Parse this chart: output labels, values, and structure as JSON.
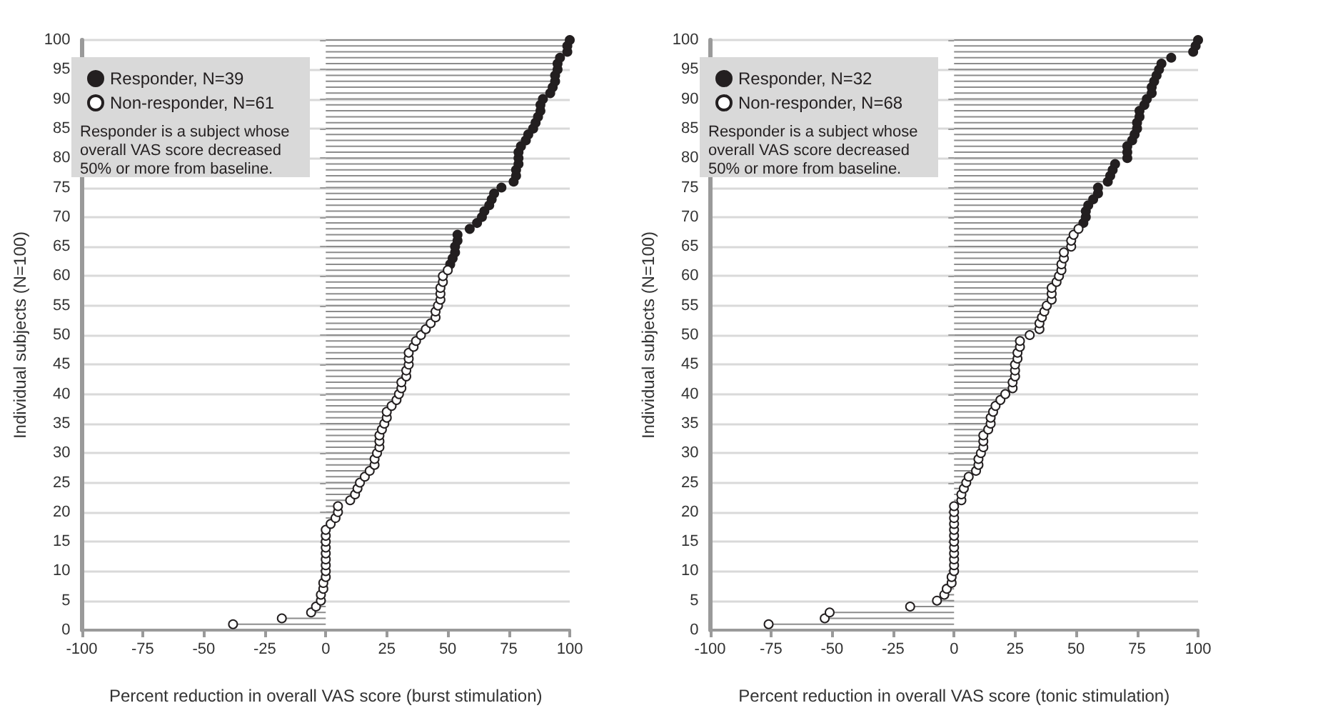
{
  "chart_data": [
    {
      "type": "lollipop",
      "orientation": "horizontal",
      "xlabel": "Percent reduction in overall VAS score (burst stimulation)",
      "ylabel": "Individual subjects (N=100)",
      "xlim": [
        -100,
        100
      ],
      "xticks": [
        -100,
        -75,
        -50,
        -25,
        0,
        25,
        50,
        75,
        100
      ],
      "ylim": [
        0,
        100
      ],
      "yticks": [
        0,
        5,
        10,
        15,
        20,
        25,
        30,
        35,
        40,
        45,
        50,
        55,
        60,
        65,
        70,
        75,
        80,
        85,
        90,
        95,
        100
      ],
      "grid": "y",
      "legend": "top left",
      "marker": "circle",
      "annotations": [
        "Responder is a subject whose overall VAS score decreased 50% or more from baseline."
      ],
      "series": [
        {
          "name": "Responder, N=39",
          "color": "#231f20",
          "x": [
            62,
            63,
            64,
            65,
            66,
            67,
            68,
            69,
            70,
            71,
            72,
            73,
            74,
            75,
            76,
            77,
            78,
            79,
            80,
            81,
            82,
            83,
            84,
            85,
            86,
            87,
            88,
            89,
            90,
            91,
            92,
            93,
            94,
            95,
            96,
            97,
            98,
            99,
            100
          ],
          "values": [
            51,
            52,
            53,
            53,
            54,
            54,
            59,
            62,
            64,
            65,
            67,
            68,
            69,
            72,
            77,
            78,
            78,
            79,
            79,
            79,
            80,
            82,
            83,
            85,
            86,
            87,
            88,
            88,
            89,
            92,
            93,
            94,
            94,
            95,
            95,
            96,
            99,
            99,
            100
          ]
        },
        {
          "name": "Non-responder, N=61",
          "color": "#ffffff",
          "x": [
            1,
            2,
            3,
            4,
            5,
            6,
            7,
            8,
            9,
            10,
            11,
            12,
            13,
            14,
            15,
            16,
            17,
            18,
            19,
            20,
            21,
            22,
            23,
            24,
            25,
            26,
            27,
            28,
            29,
            30,
            31,
            32,
            33,
            34,
            35,
            36,
            37,
            38,
            39,
            40,
            41,
            42,
            43,
            44,
            45,
            46,
            47,
            48,
            49,
            50,
            51,
            52,
            53,
            54,
            55,
            56,
            57,
            58,
            59,
            60,
            61
          ],
          "values": [
            -38,
            -18,
            -6,
            -4,
            -2,
            -2,
            -1,
            -1,
            0,
            0,
            0,
            0,
            0,
            0,
            0,
            0,
            0,
            2,
            4,
            5,
            5,
            10,
            12,
            13,
            14,
            16,
            18,
            20,
            20,
            21,
            22,
            22,
            22,
            23,
            24,
            25,
            25,
            27,
            29,
            30,
            31,
            31,
            33,
            33,
            34,
            34,
            34,
            36,
            37,
            39,
            41,
            43,
            45,
            45,
            46,
            47,
            47,
            47,
            48,
            48,
            50
          ]
        }
      ]
    },
    {
      "type": "lollipop",
      "orientation": "horizontal",
      "xlabel": "Percent reduction in overall VAS score (tonic stimulation)",
      "ylabel": "Individual subjects (N=100)",
      "xlim": [
        -100,
        100
      ],
      "xticks": [
        -100,
        -75,
        -50,
        -25,
        0,
        25,
        50,
        75,
        100
      ],
      "ylim": [
        0,
        100
      ],
      "yticks": [
        0,
        5,
        10,
        15,
        20,
        25,
        30,
        35,
        40,
        45,
        50,
        55,
        60,
        65,
        70,
        75,
        80,
        85,
        90,
        95,
        100
      ],
      "grid": "y",
      "legend": "top left",
      "marker": "circle",
      "annotations": [
        "Responder is a subject whose overall VAS score decreased 50% or more from baseline."
      ],
      "series": [
        {
          "name": "Responder, N=32",
          "color": "#231f20",
          "x": [
            69,
            70,
            71,
            72,
            73,
            74,
            75,
            76,
            77,
            78,
            79,
            80,
            81,
            82,
            83,
            84,
            85,
            86,
            87,
            88,
            89,
            90,
            91,
            92,
            93,
            94,
            95,
            96,
            97,
            98,
            99,
            100
          ],
          "values": [
            53,
            54,
            54,
            55,
            57,
            59,
            59,
            63,
            64,
            65,
            66,
            71,
            71,
            71,
            73,
            74,
            75,
            75,
            76,
            76,
            78,
            79,
            81,
            81,
            82,
            83,
            84,
            85,
            89,
            98,
            99,
            100
          ]
        },
        {
          "name": "Non-responder, N=68",
          "color": "#ffffff",
          "x": [
            1,
            2,
            3,
            4,
            5,
            6,
            7,
            8,
            9,
            10,
            11,
            12,
            13,
            14,
            15,
            16,
            17,
            18,
            19,
            20,
            21,
            22,
            23,
            24,
            25,
            26,
            27,
            28,
            29,
            30,
            31,
            32,
            33,
            34,
            35,
            36,
            37,
            38,
            39,
            40,
            41,
            42,
            43,
            44,
            45,
            46,
            47,
            48,
            49,
            50,
            51,
            52,
            53,
            54,
            55,
            56,
            57,
            58,
            59,
            60,
            61,
            62,
            63,
            64,
            65,
            66,
            67,
            68
          ],
          "values": [
            -76,
            -53,
            -51,
            -18,
            -7,
            -4,
            -3,
            -1,
            -1,
            0,
            0,
            0,
            0,
            0,
            0,
            0,
            0,
            0,
            0,
            0,
            0,
            3,
            3,
            4,
            5,
            6,
            9,
            10,
            10,
            11,
            12,
            12,
            12,
            14,
            15,
            15,
            16,
            17,
            19,
            21,
            24,
            24,
            25,
            25,
            25,
            26,
            26,
            27,
            27,
            31,
            35,
            35,
            36,
            37,
            38,
            40,
            40,
            40,
            42,
            43,
            44,
            44,
            45,
            45,
            48,
            48,
            49,
            51
          ]
        }
      ]
    }
  ]
}
